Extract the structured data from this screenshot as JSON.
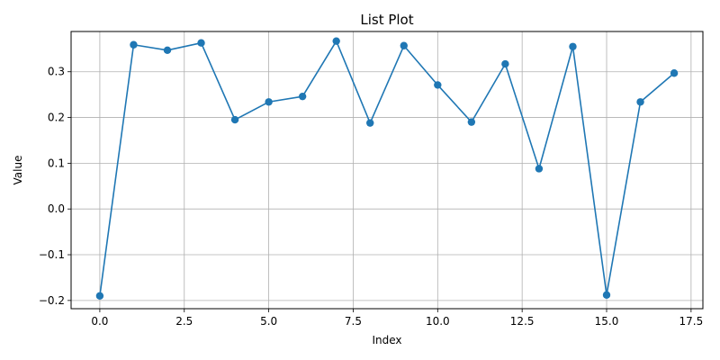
{
  "chart_data": {
    "type": "line",
    "title": "List Plot",
    "xlabel": "Index",
    "ylabel": "Value",
    "xlim": [
      -0.85,
      17.85
    ],
    "ylim": [
      -0.218,
      0.388
    ],
    "x_ticks": [
      0.0,
      2.5,
      5.0,
      7.5,
      10.0,
      12.5,
      15.0,
      17.5
    ],
    "x_tick_labels": [
      "0.0",
      "2.5",
      "5.0",
      "7.5",
      "10.0",
      "12.5",
      "15.0",
      "17.5"
    ],
    "y_ticks": [
      -0.2,
      -0.1,
      0.0,
      0.1,
      0.2,
      0.3
    ],
    "y_tick_labels": [
      "−0.2",
      "−0.1",
      "0.0",
      "0.1",
      "0.2",
      "0.3"
    ],
    "grid": true,
    "marker": "circle",
    "color": "#1f77b4",
    "x": [
      0,
      1,
      2,
      3,
      4,
      5,
      6,
      7,
      8,
      9,
      10,
      11,
      12,
      13,
      14,
      15,
      16,
      17
    ],
    "values": [
      -0.19,
      0.359,
      0.347,
      0.363,
      0.195,
      0.234,
      0.246,
      0.367,
      0.188,
      0.357,
      0.271,
      0.19,
      0.317,
      0.088,
      0.355,
      -0.188,
      0.234,
      0.297
    ]
  }
}
